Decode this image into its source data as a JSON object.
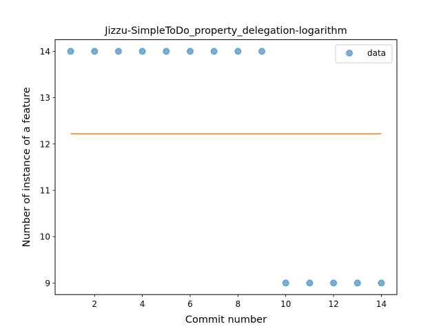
{
  "chart_data": {
    "type": "scatter",
    "title": "Jizzu-SimpleToDo_property_delegation-logarithm",
    "xlabel": "Commit number",
    "ylabel": "Number of instance of a feature",
    "xlim": [
      0.35,
      14.65
    ],
    "ylim": [
      8.75,
      14.25
    ],
    "xticks": [
      2,
      4,
      6,
      8,
      10,
      12,
      14
    ],
    "yticks": [
      9,
      10,
      11,
      12,
      13,
      14
    ],
    "grid": false,
    "legend_position": "top-right",
    "series": [
      {
        "name": "data",
        "kind": "scatter",
        "color": "#1f77b4",
        "x": [
          1,
          2,
          3,
          4,
          5,
          6,
          7,
          8,
          9,
          10,
          11,
          12,
          13,
          14
        ],
        "y": [
          14,
          14,
          14,
          14,
          14,
          14,
          14,
          14,
          14,
          9,
          9,
          9,
          9,
          9
        ]
      },
      {
        "kind": "line",
        "color": "#ff7f0e",
        "x": [
          1,
          14
        ],
        "y": [
          12.22,
          12.22
        ]
      }
    ]
  }
}
